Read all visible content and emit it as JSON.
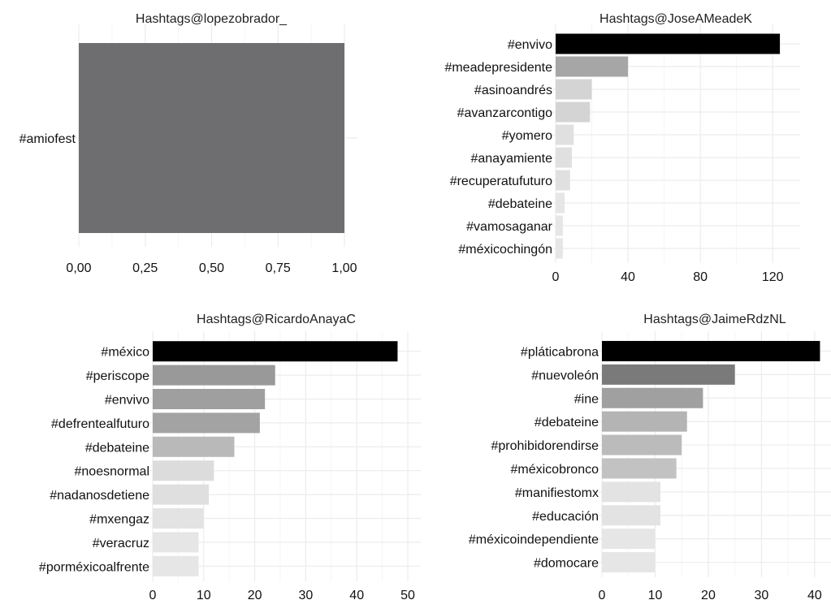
{
  "chart_data": [
    {
      "type": "bar",
      "orientation": "horizontal",
      "title": "Hashtags@lopezobrador_",
      "categories": [
        "#amiofest"
      ],
      "values": [
        1
      ],
      "bar_colors": [
        "#6e6e70"
      ],
      "xlim": [
        0,
        1
      ],
      "xticks": [
        0,
        0.25,
        0.5,
        0.75,
        1
      ],
      "xtick_labels": [
        "0,00",
        "0,25",
        "0,50",
        "0,75",
        "1,00"
      ],
      "grid": true
    },
    {
      "type": "bar",
      "orientation": "horizontal",
      "title": "Hashtags@JoseAMeadeK",
      "categories": [
        "#envivo",
        "#meadepresidente",
        "#asinoandrés",
        "#avanzarcontigo",
        "#yomero",
        "#anayamiente",
        "#recuperatufuturo",
        "#debateine",
        "#vamosaganar",
        "#méxicochingón"
      ],
      "values": [
        124,
        40,
        20,
        19,
        10,
        9,
        8,
        5,
        4,
        4
      ],
      "bar_colors": [
        "#000000",
        "#a6a6a6",
        "#d4d4d4",
        "#d4d4d4",
        "#e0e0e0",
        "#e0e0e0",
        "#e0e0e0",
        "#e6e6e6",
        "#e6e6e6",
        "#e6e6e6"
      ],
      "xlim": [
        0,
        128
      ],
      "xticks": [
        0,
        40,
        80,
        120
      ],
      "xtick_labels": [
        "0",
        "40",
        "80",
        "120"
      ],
      "grid": true
    },
    {
      "type": "bar",
      "orientation": "horizontal",
      "title": "Hashtags@RicardoAnayaC",
      "categories": [
        "#méxico",
        "#periscope",
        "#envivo",
        "#defrentealfuturo",
        "#debateine",
        "#noesnormal",
        "#nadanosdetiene",
        "#mxengaz",
        "#veracruz",
        "#porméxicoalfrente"
      ],
      "values": [
        48,
        24,
        22,
        21,
        16,
        12,
        11,
        10,
        9,
        9
      ],
      "bar_colors": [
        "#000000",
        "#999999",
        "#9f9f9f",
        "#a3a3a3",
        "#b9b9b9",
        "#dcdcdc",
        "#dfdfdf",
        "#e3e3e3",
        "#e6e6e6",
        "#e6e6e6"
      ],
      "xlim": [
        0,
        50
      ],
      "xticks": [
        0,
        10,
        20,
        30,
        40,
        50
      ],
      "xtick_labels": [
        "0",
        "10",
        "20",
        "30",
        "40",
        "50"
      ],
      "grid": true
    },
    {
      "type": "bar",
      "orientation": "horizontal",
      "title": "Hashtags@JaimeRdzNL",
      "categories": [
        "#pláticabrona",
        "#nuevoleón",
        "#ine",
        "#debateine",
        "#prohibidorendirse",
        "#méxicobronco",
        "#manifiestomx",
        "#educación",
        "#méxicoindependiente",
        "#domocare"
      ],
      "values": [
        41,
        25,
        19,
        16,
        15,
        14,
        11,
        11,
        10,
        10
      ],
      "bar_colors": [
        "#000000",
        "#7a7a7a",
        "#a0a0a0",
        "#b4b4b4",
        "#bbbbbb",
        "#c2c2c2",
        "#e3e3e3",
        "#e3e3e3",
        "#e6e6e6",
        "#e6e6e6"
      ],
      "xlim": [
        0,
        42
      ],
      "xticks": [
        0,
        10,
        20,
        30,
        40
      ],
      "xtick_labels": [
        "0",
        "10",
        "20",
        "30",
        "40"
      ],
      "grid": true
    }
  ]
}
